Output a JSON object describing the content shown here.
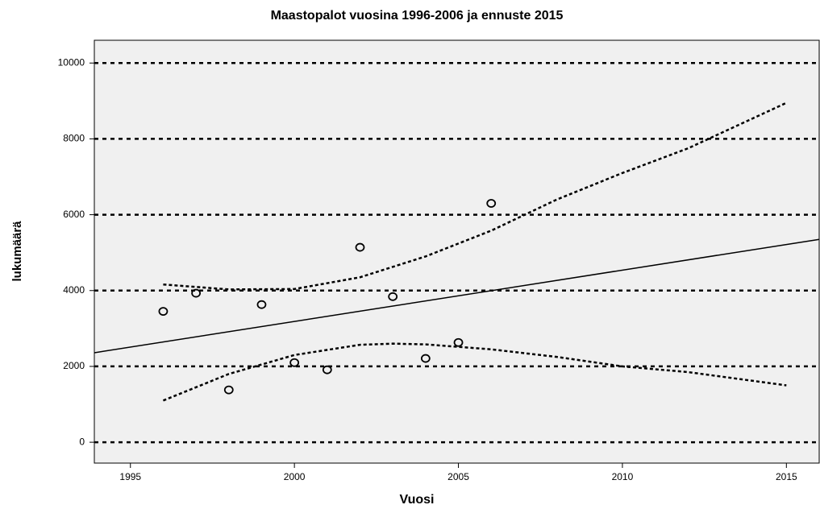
{
  "chart_data": {
    "type": "scatter",
    "title": "Maastopalot vuosina 1996-2006 ja ennuste 2015",
    "x_label": "Vuosi",
    "y_label": "lukumäärä",
    "xlim": [
      1993.9,
      2016
    ],
    "xticks": [
      1995,
      2000,
      2005,
      2010,
      2015
    ],
    "ylim": [
      -550,
      10600
    ],
    "yticks": [
      0,
      2000,
      4000,
      6000,
      8000,
      10000
    ],
    "grid": true,
    "background": "#f0f0f0",
    "series": [
      {
        "style": "points",
        "color": "#000000",
        "x": [
          1996,
          1997,
          1998,
          1999,
          2000,
          2001,
          2002,
          2003,
          2004,
          2005,
          2006
        ],
        "values": [
          3450,
          3930,
          1380,
          3630,
          2100,
          1910,
          5140,
          3840,
          2210,
          2630,
          6300
        ]
      },
      {
        "style": "solid",
        "color": "#000000",
        "x": [
          1993.9,
          2016
        ],
        "values": [
          2360,
          5350
        ]
      },
      {
        "style": "dashed",
        "color": "#000000",
        "x": [
          1996,
          1998,
          2000,
          2002,
          2004,
          2006,
          2008,
          2010,
          2012,
          2015
        ],
        "values": [
          4160,
          4030,
          4040,
          4350,
          4900,
          5580,
          6400,
          7100,
          7750,
          8950
        ]
      },
      {
        "style": "dashed",
        "color": "#000000",
        "x": [
          1996,
          1998,
          2000,
          2002,
          2003,
          2004,
          2006,
          2008,
          2010,
          2012,
          2015
        ],
        "values": [
          1100,
          1800,
          2300,
          2570,
          2600,
          2580,
          2450,
          2250,
          2000,
          1850,
          1500
        ]
      }
    ]
  }
}
